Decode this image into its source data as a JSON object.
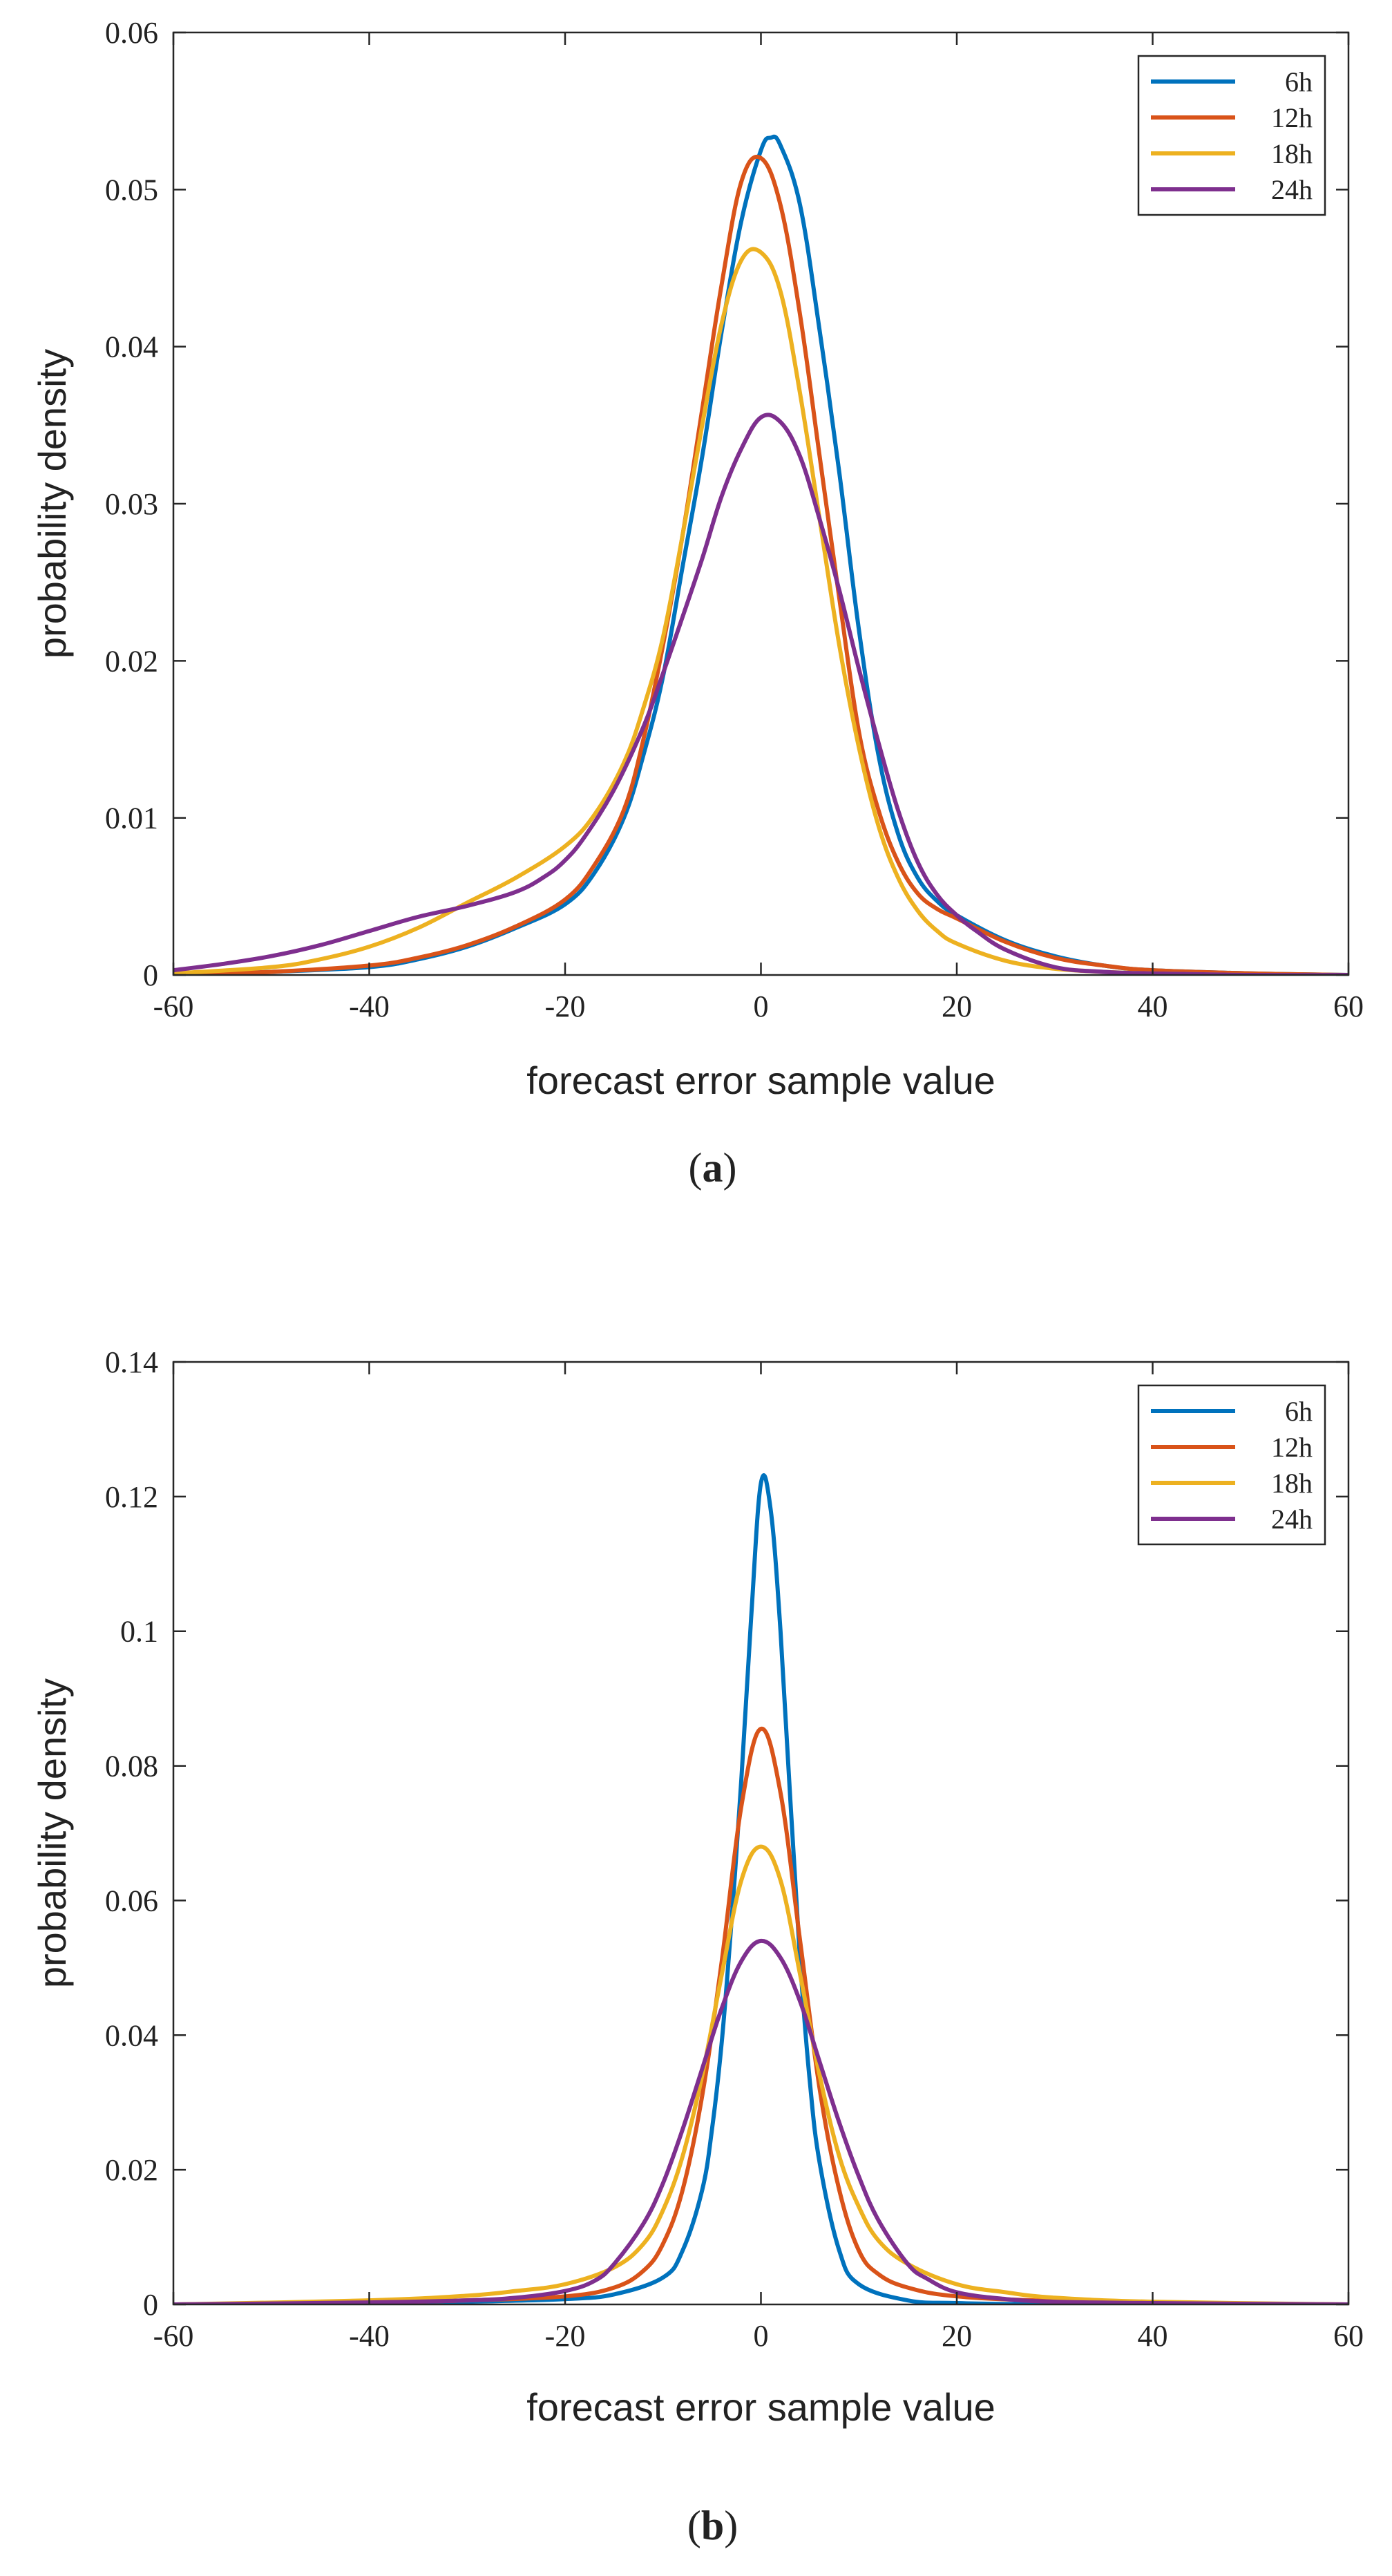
{
  "chart_data": [
    {
      "type": "line",
      "panel": "a",
      "caption_letter": "a",
      "xlabel": "forecast error sample value",
      "ylabel": "probability density",
      "xlim": [
        -60,
        60
      ],
      "ylim": [
        0,
        0.06
      ],
      "xticks": [
        -60,
        -40,
        -20,
        0,
        20,
        40,
        60
      ],
      "xtick_labels": [
        "-60",
        "-40",
        "-20",
        "0",
        "20",
        "40",
        "60"
      ],
      "yticks": [
        0,
        0.01,
        0.02,
        0.03,
        0.04,
        0.05,
        0.06
      ],
      "ytick_labels": [
        "0",
        "0.01",
        "0.02",
        "0.03",
        "0.04",
        "0.05",
        "0.06"
      ],
      "grid": false,
      "legend_position": "top-right",
      "series": [
        {
          "name": "6h",
          "color": "#0072BD",
          "x": [
            -60,
            -50,
            -40,
            -35,
            -30,
            -25,
            -20,
            -17,
            -14,
            -12,
            -10,
            -8,
            -6,
            -4,
            -2,
            0,
            1,
            2,
            4,
            6,
            8,
            10,
            12,
            14,
            16,
            18,
            20,
            25,
            30,
            35,
            40,
            50,
            60
          ],
          "y": [
            0,
            0.0002,
            0.0005,
            0.001,
            0.0018,
            0.003,
            0.0045,
            0.0065,
            0.01,
            0.014,
            0.019,
            0.026,
            0.033,
            0.041,
            0.048,
            0.0525,
            0.0533,
            0.0528,
            0.049,
            0.041,
            0.032,
            0.022,
            0.014,
            0.009,
            0.0062,
            0.0047,
            0.0038,
            0.0022,
            0.0012,
            0.0006,
            0.0003,
            0.0001,
            0
          ]
        },
        {
          "name": "12h",
          "color": "#D95319",
          "x": [
            -60,
            -50,
            -40,
            -35,
            -30,
            -25,
            -20,
            -17,
            -14,
            -12,
            -10,
            -8,
            -6,
            -4,
            -2,
            0,
            2,
            4,
            6,
            8,
            10,
            12,
            14,
            16,
            18,
            20,
            25,
            30,
            35,
            40,
            50,
            60
          ],
          "y": [
            0,
            0.0002,
            0.0006,
            0.0011,
            0.0019,
            0.0031,
            0.0048,
            0.007,
            0.0105,
            0.015,
            0.021,
            0.028,
            0.036,
            0.044,
            0.0505,
            0.052,
            0.049,
            0.042,
            0.033,
            0.024,
            0.0155,
            0.0105,
            0.0072,
            0.0052,
            0.0042,
            0.0036,
            0.0021,
            0.0011,
            0.0006,
            0.0003,
            0.0001,
            0
          ]
        },
        {
          "name": "18h",
          "color": "#EDB120",
          "x": [
            -60,
            -50,
            -45,
            -40,
            -35,
            -30,
            -25,
            -20,
            -17,
            -14,
            -12,
            -10,
            -8,
            -6,
            -4,
            -2,
            0,
            2,
            4,
            6,
            8,
            10,
            12,
            14,
            16,
            18,
            20,
            25,
            30,
            35,
            40,
            50,
            60
          ],
          "y": [
            0.0001,
            0.0005,
            0.001,
            0.0018,
            0.003,
            0.0046,
            0.0062,
            0.0082,
            0.0102,
            0.0135,
            0.017,
            0.0215,
            0.028,
            0.035,
            0.0415,
            0.0455,
            0.046,
            0.0435,
            0.037,
            0.029,
            0.021,
            0.0145,
            0.0095,
            0.0062,
            0.0041,
            0.0028,
            0.002,
            0.0009,
            0.0004,
            0.0002,
            0.0001,
            0,
            0
          ]
        },
        {
          "name": "24h",
          "color": "#7E2F8E",
          "x": [
            -60,
            -55,
            -50,
            -45,
            -40,
            -35,
            -30,
            -25,
            -22,
            -20,
            -18,
            -15,
            -12,
            -10,
            -8,
            -6,
            -4,
            -2,
            0,
            2,
            4,
            6,
            8,
            10,
            12,
            14,
            16,
            18,
            20,
            22,
            25,
            30,
            35,
            40,
            50,
            60
          ],
          "y": [
            0.0003,
            0.0007,
            0.0012,
            0.0019,
            0.0028,
            0.0037,
            0.0044,
            0.0053,
            0.0063,
            0.0073,
            0.0088,
            0.0118,
            0.0158,
            0.0192,
            0.0228,
            0.0265,
            0.0305,
            0.0335,
            0.0355,
            0.0352,
            0.033,
            0.029,
            0.0245,
            0.0195,
            0.0148,
            0.0105,
            0.0072,
            0.0051,
            0.0038,
            0.0028,
            0.0016,
            0.0005,
            0.0002,
            0.0001,
            0,
            0
          ]
        }
      ]
    },
    {
      "type": "line",
      "panel": "b",
      "caption_letter": "b",
      "xlabel": "forecast error sample value",
      "ylabel": "probability density",
      "xlim": [
        -60,
        60
      ],
      "ylim": [
        0,
        0.14
      ],
      "xticks": [
        -60,
        -40,
        -20,
        0,
        20,
        40,
        60
      ],
      "xtick_labels": [
        "-60",
        "-40",
        "-20",
        "0",
        "20",
        "40",
        "60"
      ],
      "yticks": [
        0,
        0.02,
        0.04,
        0.06,
        0.08,
        0.1,
        0.12,
        0.14
      ],
      "ytick_labels": [
        "0",
        "0.02",
        "0.04",
        "0.06",
        "0.08",
        "0.1",
        "0.12",
        "0.14"
      ],
      "grid": false,
      "legend_position": "top-right",
      "series": [
        {
          "name": "6h",
          "color": "#0072BD",
          "x": [
            -60,
            -40,
            -30,
            -20,
            -15,
            -10,
            -8,
            -6,
            -5,
            -4,
            -3,
            -2,
            -1,
            0,
            1,
            2,
            3,
            4,
            5,
            6,
            8,
            10,
            15,
            20,
            30,
            40,
            60
          ],
          "y": [
            0,
            0.0002,
            0.0004,
            0.0008,
            0.0015,
            0.004,
            0.008,
            0.017,
            0.026,
            0.039,
            0.057,
            0.078,
            0.102,
            0.122,
            0.118,
            0.1,
            0.075,
            0.051,
            0.033,
            0.021,
            0.008,
            0.003,
            0.0006,
            0.0002,
            0,
            0,
            0
          ]
        },
        {
          "name": "12h",
          "color": "#D95319",
          "x": [
            -60,
            -40,
            -30,
            -20,
            -15,
            -12,
            -10,
            -8,
            -6,
            -4,
            -2,
            0,
            2,
            4,
            6,
            8,
            10,
            12,
            15,
            20,
            30,
            40,
            60
          ],
          "y": [
            0,
            0.0003,
            0.0006,
            0.0012,
            0.0025,
            0.005,
            0.009,
            0.017,
            0.031,
            0.051,
            0.074,
            0.0855,
            0.076,
            0.054,
            0.032,
            0.017,
            0.008,
            0.0045,
            0.0025,
            0.0012,
            0.0005,
            0.0002,
            0
          ]
        },
        {
          "name": "18h",
          "color": "#EDB120",
          "x": [
            -60,
            -40,
            -30,
            -25,
            -20,
            -15,
            -12,
            -10,
            -8,
            -6,
            -4,
            -2,
            0,
            2,
            4,
            6,
            8,
            10,
            12,
            15,
            20,
            25,
            30,
            40,
            60
          ],
          "y": [
            0,
            0.0006,
            0.0013,
            0.002,
            0.003,
            0.0055,
            0.009,
            0.014,
            0.022,
            0.034,
            0.049,
            0.063,
            0.068,
            0.063,
            0.049,
            0.034,
            0.022,
            0.0145,
            0.0095,
            0.006,
            0.003,
            0.0018,
            0.001,
            0.0004,
            0
          ]
        },
        {
          "name": "24h",
          "color": "#7E2F8E",
          "x": [
            -60,
            -40,
            -30,
            -25,
            -20,
            -17,
            -15,
            -12,
            -10,
            -8,
            -6,
            -4,
            -2,
            0,
            2,
            4,
            6,
            8,
            10,
            12,
            15,
            17,
            20,
            25,
            30,
            40,
            60
          ],
          "y": [
            0,
            0.0003,
            0.0006,
            0.001,
            0.002,
            0.0035,
            0.006,
            0.012,
            0.018,
            0.026,
            0.035,
            0.044,
            0.051,
            0.054,
            0.0515,
            0.045,
            0.036,
            0.027,
            0.019,
            0.0125,
            0.006,
            0.0038,
            0.0018,
            0.0008,
            0.0004,
            0.0002,
            0
          ]
        }
      ]
    }
  ]
}
